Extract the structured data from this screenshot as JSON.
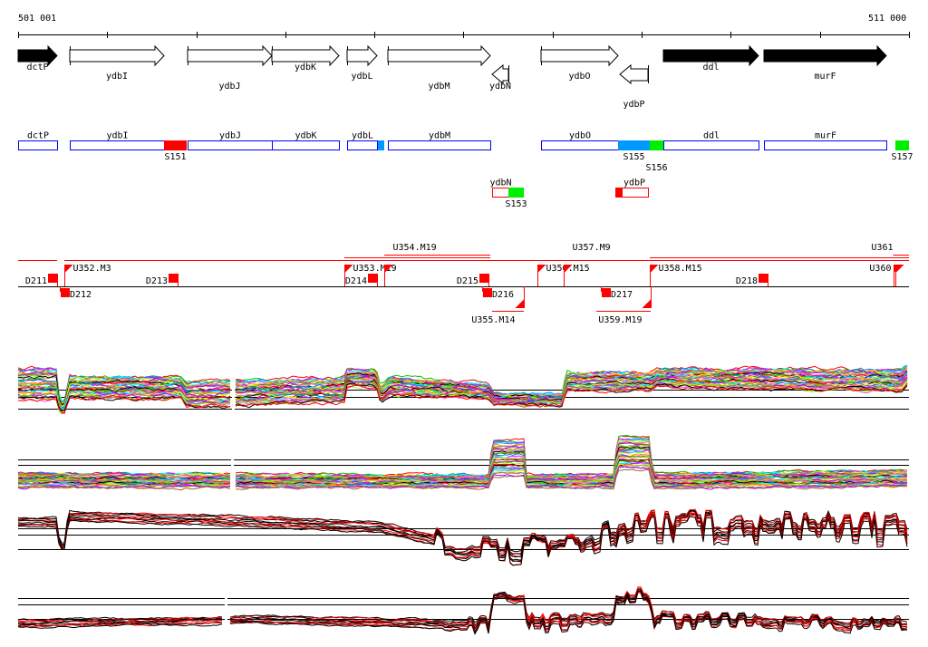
{
  "axis": {
    "start_label": "501 001",
    "end_label": "511 000",
    "start_bp": 501001,
    "end_bp": 511000,
    "tick_every_bp": 1000
  },
  "genes": [
    {
      "name": "dctP",
      "start": 501001,
      "end": 501438,
      "strand": "+",
      "filled": true
    },
    {
      "name": "ydbI",
      "start": 501581,
      "end": 502639,
      "strand": "+",
      "filled": false
    },
    {
      "name": "ydbJ",
      "start": 502903,
      "end": 503849,
      "strand": "+",
      "filled": false
    },
    {
      "name": "ydbK",
      "start": 503849,
      "end": 504602,
      "strand": "+",
      "filled": false
    },
    {
      "name": "ydbL",
      "start": 504694,
      "end": 505030,
      "strand": "+",
      "filled": false
    },
    {
      "name": "ydbM",
      "start": 505151,
      "end": 506301,
      "strand": "+",
      "filled": false
    },
    {
      "name": "ydbN",
      "start": 506321,
      "end": 506504,
      "strand": "-",
      "filled": false
    },
    {
      "name": "ydbO",
      "start": 506870,
      "end": 507735,
      "strand": "+",
      "filled": false
    },
    {
      "name": "ydbP",
      "start": 507755,
      "end": 508071,
      "strand": "-",
      "filled": false
    },
    {
      "name": "ddl",
      "start": 508244,
      "end": 509312,
      "strand": "+",
      "filled": true
    },
    {
      "name": "murF",
      "start": 509373,
      "end": 510746,
      "strand": "+",
      "filled": true
    }
  ],
  "segments": [
    {
      "label": "S151",
      "start": 502639,
      "end": 502893,
      "color": "#ff0000",
      "row": "forward"
    },
    {
      "label": "",
      "start": 505040,
      "end": 505110,
      "color": "#0099ff",
      "row": "forward"
    },
    {
      "label": "S155",
      "start": 507735,
      "end": 508091,
      "color": "#0099ff",
      "row": "forward"
    },
    {
      "label": "S156",
      "start": 508091,
      "end": 508244,
      "color": "#00ee00",
      "row": "forward"
    },
    {
      "label": "S157",
      "start": 510848,
      "end": 511000,
      "color": "#00ee00",
      "row": "forward"
    },
    {
      "label": "S153",
      "start": 506504,
      "end": 506677,
      "color": "#00ee00",
      "row": "reverse"
    },
    {
      "label": "",
      "start": 507704,
      "end": 507785,
      "color": "#ff0000",
      "row": "reverse"
    }
  ],
  "transcripts": {
    "down_marks": [
      {
        "label": "D211",
        "pos": 501438,
        "side": "up"
      },
      {
        "label": "D212",
        "pos": 501581,
        "side": "down"
      },
      {
        "label": "D213",
        "pos": 502792,
        "side": "up"
      },
      {
        "label": "D214",
        "pos": 505030,
        "side": "up"
      },
      {
        "label": "D215",
        "pos": 506281,
        "side": "up"
      },
      {
        "label": "D216",
        "pos": 506321,
        "side": "down"
      },
      {
        "label": "D217",
        "pos": 507653,
        "side": "down"
      },
      {
        "label": "D218",
        "pos": 509414,
        "side": "up"
      }
    ],
    "up_marks": [
      {
        "label": "U352.M3",
        "pos": 501520,
        "side": "up"
      },
      {
        "label": "U353.M19",
        "pos": 504663,
        "side": "up"
      },
      {
        "label": "U354.M19",
        "pos": 505110,
        "side": "up"
      },
      {
        "label": "U355.M14",
        "pos": 506677,
        "side": "down"
      },
      {
        "label": "U356.M15",
        "pos": 506830,
        "side": "up"
      },
      {
        "label": "U357.M9",
        "pos": 507125,
        "side": "up"
      },
      {
        "label": "U358.M15",
        "pos": 508091,
        "side": "up"
      },
      {
        "label": "U359.M19",
        "pos": 508101,
        "side": "down"
      },
      {
        "label": "U360",
        "pos": 510822,
        "side": "up"
      },
      {
        "label": "U361",
        "pos": 510848,
        "side": "up"
      }
    ],
    "spans": [
      {
        "start": 501001,
        "end": 501438
      },
      {
        "start": 501520,
        "end": 511000
      },
      {
        "start": 504663,
        "end": 506301
      },
      {
        "start": 505110,
        "end": 506301
      },
      {
        "start": 506830,
        "end": 507003
      },
      {
        "start": 507125,
        "end": 511000
      },
      {
        "start": 508091,
        "end": 511000
      },
      {
        "start": 510822,
        "end": 511000
      },
      {
        "start": 506321,
        "end": 506677
      },
      {
        "start": 507491,
        "end": 508101
      }
    ]
  },
  "colors": {
    "gene_box": "#0000ff",
    "transcript": "#ff0000",
    "series_palette": [
      "#ff0000",
      "#00cc00",
      "#0080ff",
      "#ff00ff",
      "#00ffff",
      "#ffee00",
      "#ff8000",
      "#888888",
      "#aa00ff",
      "#996633",
      "#80ff00",
      "#ff66cc"
    ]
  }
}
